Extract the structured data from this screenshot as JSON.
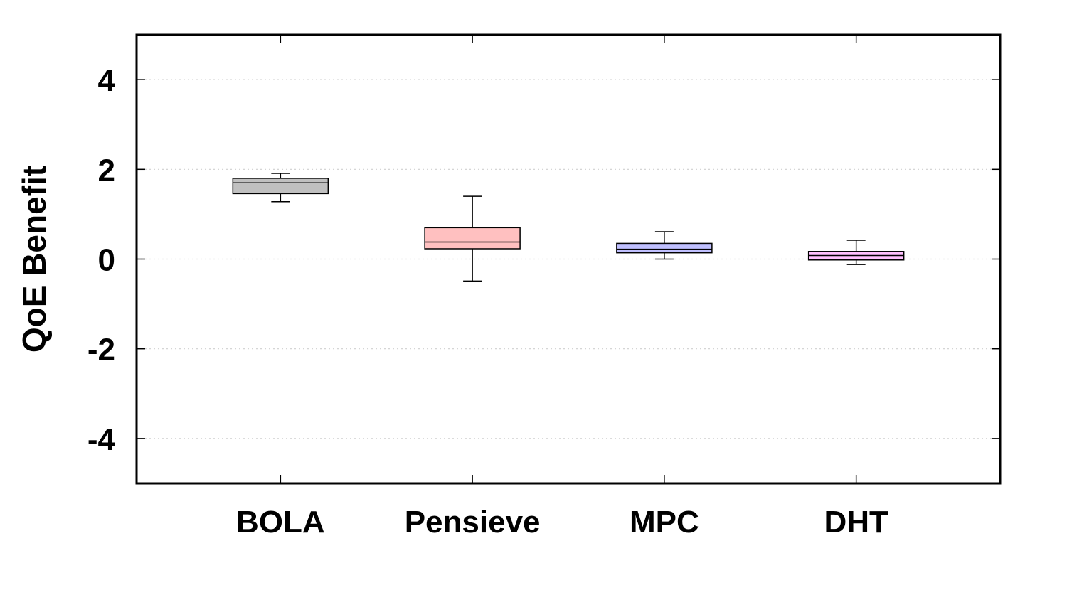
{
  "chart_data": {
    "type": "box",
    "title": "",
    "xlabel": "",
    "ylabel": "QoE Benefit",
    "ylim": [
      -5,
      5
    ],
    "y_ticks": [
      4,
      2,
      0,
      -2,
      -4
    ],
    "y_tick_labels": [
      "4",
      "2",
      "0",
      "-2",
      "-4"
    ],
    "grid": "horizontal dotted",
    "categories": [
      "BOLA",
      "Pensieve",
      "MPC",
      "DHT"
    ],
    "boxes": [
      {
        "name": "BOLA",
        "whisker_low": 1.28,
        "q1": 1.46,
        "median": 1.7,
        "q3": 1.8,
        "whisker_high": 1.91,
        "color": "#c0c0c0"
      },
      {
        "name": "Pensieve",
        "whisker_low": -0.49,
        "q1": 0.23,
        "median": 0.38,
        "q3": 0.7,
        "whisker_high": 1.4,
        "color": "#ffc0c0"
      },
      {
        "name": "MPC",
        "whisker_low": 0.0,
        "q1": 0.14,
        "median": 0.22,
        "q3": 0.35,
        "whisker_high": 0.61,
        "color": "#c0c0ff"
      },
      {
        "name": "DHT",
        "whisker_low": -0.12,
        "q1": -0.02,
        "median": 0.08,
        "q3": 0.17,
        "whisker_high": 0.42,
        "color": "#ffc0ff"
      }
    ]
  }
}
